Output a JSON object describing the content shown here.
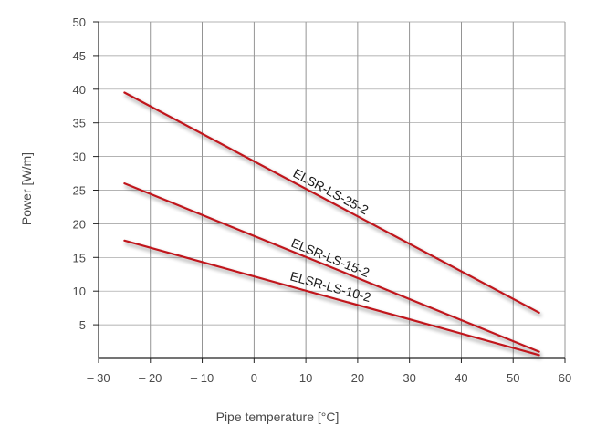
{
  "chart_data": {
    "type": "line",
    "title": "",
    "xlabel": "Pipe temperature [°C]",
    "ylabel": "Power [W/m]",
    "xlim": [
      -30,
      60
    ],
    "ylim": [
      0,
      50
    ],
    "xticks": [
      -30,
      -20,
      -10,
      0,
      10,
      20,
      30,
      40,
      50,
      60
    ],
    "xtick_labels": [
      "– 30",
      "– 20",
      "– 10",
      "0",
      "10",
      "20",
      "30",
      "40",
      "50",
      "60"
    ],
    "yticks": [
      5,
      10,
      15,
      20,
      25,
      30,
      35,
      40,
      45,
      50
    ],
    "ytick_labels": [
      "5",
      "10",
      "15",
      "20",
      "25",
      "30",
      "35",
      "40",
      "45",
      "50"
    ],
    "grid": true,
    "line_color": "#c0181f",
    "series": [
      {
        "name": "ELSR-LS-25-2",
        "x": [
          -25,
          55
        ],
        "y": [
          39.5,
          6.8
        ]
      },
      {
        "name": "ELSR-LS-15-2",
        "x": [
          -25,
          55
        ],
        "y": [
          26,
          1.0
        ]
      },
      {
        "name": "ELSR-LS-10-2",
        "x": [
          -25,
          55
        ],
        "y": [
          17.5,
          0.5
        ]
      }
    ]
  }
}
